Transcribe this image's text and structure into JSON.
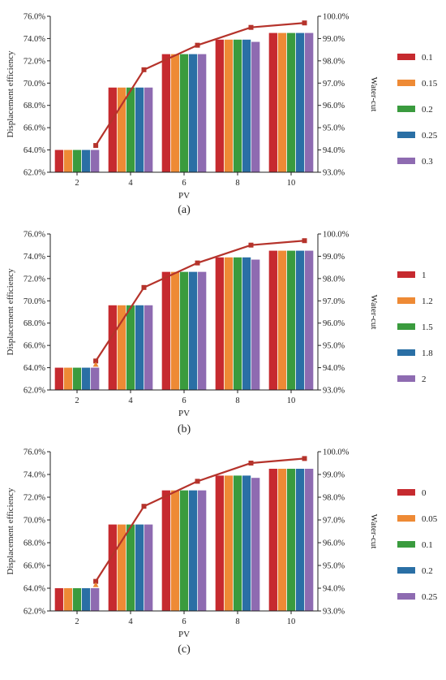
{
  "chart_data": [
    {
      "type": "bar",
      "panel_label": "(a)",
      "xlabel": "PV",
      "ylabel": "Displacement efficiency",
      "y2label": "Water-cut",
      "categories": [
        "2",
        "4",
        "6",
        "8",
        "10"
      ],
      "ylim": [
        62.0,
        76.0
      ],
      "yticks": [
        "62.0%",
        "64.0%",
        "66.0%",
        "68.0%",
        "70.0%",
        "72.0%",
        "74.0%",
        "76.0%"
      ],
      "y2lim": [
        93.0,
        100.0
      ],
      "y2ticks": [
        "93.0%",
        "94.0%",
        "95.0%",
        "96.0%",
        "97.0%",
        "98.0%",
        "99.0%",
        "100.0%"
      ],
      "legend_position": "right",
      "series": [
        {
          "name": "0.1",
          "color": "#c62a2f",
          "values": [
            64.0,
            69.6,
            72.6,
            73.9,
            74.5
          ]
        },
        {
          "name": "0.15",
          "color": "#ee8a35",
          "values": [
            64.0,
            69.6,
            72.6,
            73.9,
            74.5
          ]
        },
        {
          "name": "0.2",
          "color": "#3a9b3e",
          "values": [
            64.0,
            69.6,
            72.6,
            73.9,
            74.5
          ]
        },
        {
          "name": "0.25",
          "color": "#2a6fa5",
          "values": [
            64.0,
            69.6,
            72.6,
            73.9,
            74.5
          ]
        },
        {
          "name": "0.3",
          "color": "#8e6bb1",
          "values": [
            64.0,
            69.6,
            72.6,
            73.7,
            74.5
          ]
        }
      ],
      "line": {
        "axis": "right",
        "x": [
          2.7,
          4.5,
          6.5,
          8.5,
          10.5
        ],
        "values": [
          94.2,
          97.6,
          98.7,
          99.5,
          99.7
        ],
        "line_color": "#b5332b",
        "marker_color": "#b5332b",
        "highlight_color": ""
      }
    },
    {
      "type": "bar",
      "panel_label": "(b)",
      "xlabel": "PV",
      "ylabel": "Displacement efficiency",
      "y2label": "Water-cut",
      "categories": [
        "2",
        "4",
        "6",
        "8",
        "10"
      ],
      "ylim": [
        62.0,
        76.0
      ],
      "yticks": [
        "62.0%",
        "64.0%",
        "66.0%",
        "68.0%",
        "70.0%",
        "72.0%",
        "74.0%",
        "76.0%"
      ],
      "y2lim": [
        93.0,
        100.0
      ],
      "y2ticks": [
        "93.0%",
        "94.0%",
        "95.0%",
        "96.0%",
        "97.0%",
        "98.0%",
        "99.0%",
        "100.0%"
      ],
      "legend_position": "right",
      "series": [
        {
          "name": "1",
          "color": "#c62a2f",
          "values": [
            64.0,
            69.6,
            72.6,
            73.9,
            74.5
          ]
        },
        {
          "name": "1.2",
          "color": "#ee8a35",
          "values": [
            64.0,
            69.6,
            72.6,
            73.9,
            74.5
          ]
        },
        {
          "name": "1.5",
          "color": "#3a9b3e",
          "values": [
            64.0,
            69.6,
            72.6,
            73.9,
            74.5
          ]
        },
        {
          "name": "1.8",
          "color": "#2a6fa5",
          "values": [
            64.0,
            69.6,
            72.6,
            73.9,
            74.5
          ]
        },
        {
          "name": "2",
          "color": "#8e6bb1",
          "values": [
            64.0,
            69.6,
            72.6,
            73.7,
            74.5
          ]
        }
      ],
      "line": {
        "axis": "right",
        "x": [
          2.7,
          4.5,
          6.5,
          8.5,
          10.5
        ],
        "values": [
          94.3,
          97.6,
          98.7,
          99.5,
          99.7
        ],
        "line_color": "#b5332b",
        "marker_color": "#b5332b",
        "highlight_color": "#ee8a35"
      }
    },
    {
      "type": "bar",
      "panel_label": "(c)",
      "xlabel": "PV",
      "ylabel": "Displacement efficiency",
      "y2label": "Water-cut",
      "categories": [
        "2",
        "4",
        "6",
        "8",
        "10"
      ],
      "ylim": [
        62.0,
        76.0
      ],
      "yticks": [
        "62.0%",
        "64.0%",
        "66.0%",
        "68.0%",
        "70.0%",
        "72.0%",
        "74.0%",
        "76.0%"
      ],
      "y2lim": [
        93.0,
        100.0
      ],
      "y2ticks": [
        "93.0%",
        "94.0%",
        "95.0%",
        "96.0%",
        "97.0%",
        "98.0%",
        "99.0%",
        "100.0%"
      ],
      "legend_position": "right",
      "series": [
        {
          "name": "0",
          "color": "#c62a2f",
          "values": [
            64.0,
            69.6,
            72.6,
            73.9,
            74.5
          ]
        },
        {
          "name": "0.05",
          "color": "#ee8a35",
          "values": [
            64.0,
            69.6,
            72.6,
            73.9,
            74.5
          ]
        },
        {
          "name": "0.1",
          "color": "#3a9b3e",
          "values": [
            64.0,
            69.6,
            72.6,
            73.9,
            74.5
          ]
        },
        {
          "name": "0.2",
          "color": "#2a6fa5",
          "values": [
            64.0,
            69.6,
            72.6,
            73.9,
            74.5
          ]
        },
        {
          "name": "0.25",
          "color": "#8e6bb1",
          "values": [
            64.0,
            69.6,
            72.6,
            73.7,
            74.5
          ]
        }
      ],
      "line": {
        "axis": "right",
        "x": [
          2.7,
          4.5,
          6.5,
          8.5,
          10.5
        ],
        "values": [
          94.3,
          97.6,
          98.7,
          99.5,
          99.7
        ],
        "line_color": "#b5332b",
        "marker_color": "#b5332b",
        "highlight_color": "#ee8a35"
      }
    }
  ]
}
